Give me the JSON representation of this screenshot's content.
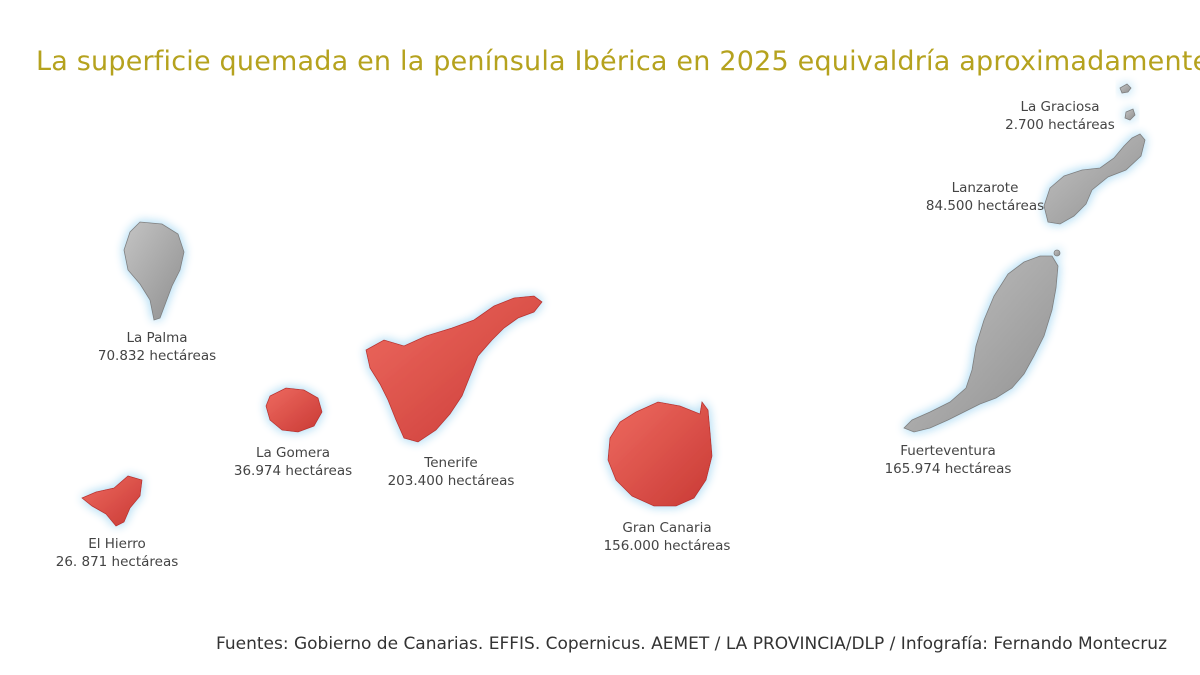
{
  "title": "La superficie quemada en la península Ibérica en 2025 equivaldría aproximadamente a:",
  "colors": {
    "title": "#b5a21e",
    "burned": "#e0524a",
    "burned_dark": "#b8322e",
    "land": "#a9a9a9",
    "land_dark": "#7e7e7e",
    "halo": "#bfe3f6"
  },
  "islands": [
    {
      "id": "la-graciosa",
      "name": "La Graciosa",
      "area": "2.700 hectáreas",
      "burned": false
    },
    {
      "id": "lanzarote",
      "name": "Lanzarote",
      "area": "84.500 hectáreas",
      "burned": false
    },
    {
      "id": "la-palma",
      "name": "La Palma",
      "area": "70.832 hectáreas",
      "burned": false
    },
    {
      "id": "tenerife",
      "name": "Tenerife",
      "area": "203.400 hectáreas",
      "burned": true
    },
    {
      "id": "la-gomera",
      "name": "La Gomera",
      "area": "36.974 hectáreas",
      "burned": true
    },
    {
      "id": "fuerteventura",
      "name": "Fuerteventura",
      "area": "165.974 hectáreas",
      "burned": false
    },
    {
      "id": "el-hierro",
      "name": "El Hierro",
      "area": "26. 871 hectáreas",
      "burned": true
    },
    {
      "id": "gran-canaria",
      "name": "Gran Canaria",
      "area": "156.000 hectáreas",
      "burned": true
    }
  ],
  "source": "Fuentes: Gobierno de Canarias. EFFIS. Copernicus. AEMET / LA PROVINCIA/DLP / Infografía: Fernando Montecruz"
}
